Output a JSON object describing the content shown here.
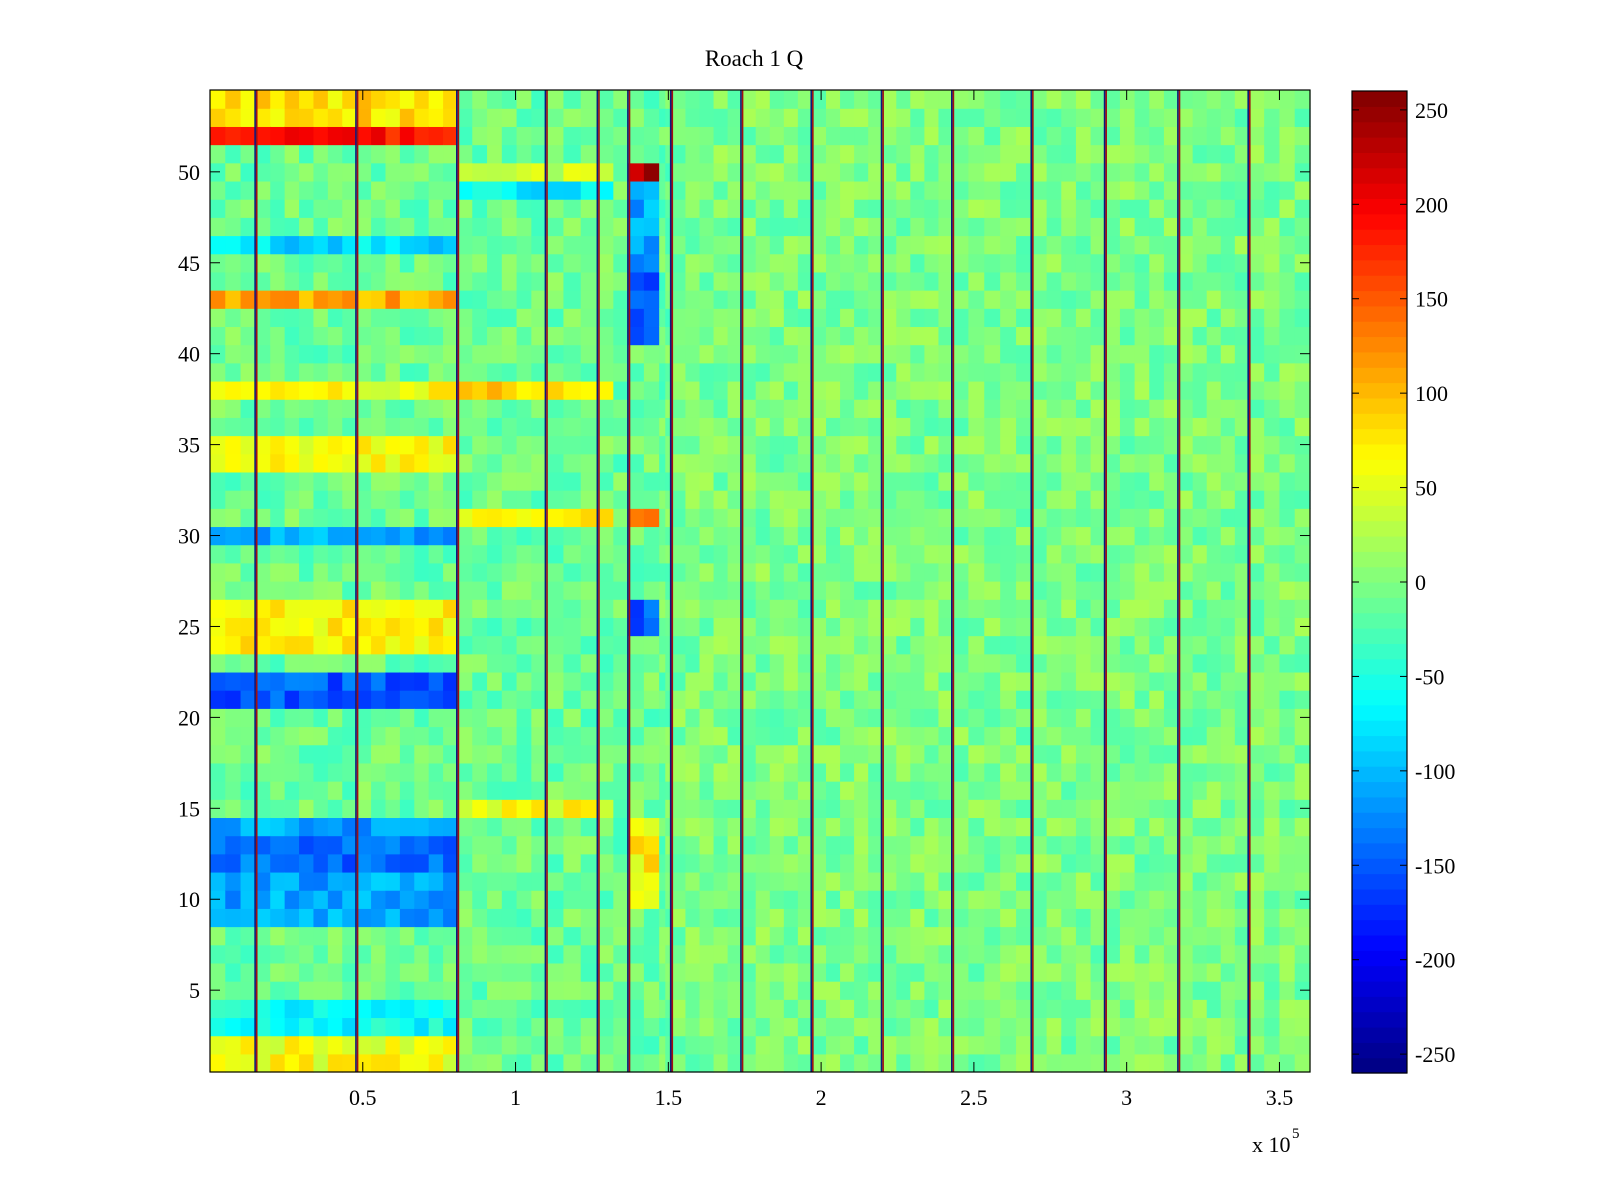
{
  "chart_data": {
    "type": "heatmap",
    "title": "Roach 1 Q",
    "xlabel": "",
    "ylabel": "",
    "x_multiplier_label": "x 10",
    "x_multiplier_exponent": "5",
    "xlim": [
      0,
      3.6
    ],
    "ylim": [
      0.5,
      54.5
    ],
    "x_ticks": [
      0.5,
      1,
      1.5,
      2,
      2.5,
      3,
      3.5
    ],
    "x_tick_labels": [
      "0.5",
      "1",
      "1.5",
      "2",
      "2.5",
      "3",
      "3.5"
    ],
    "y_ticks": [
      5,
      10,
      15,
      20,
      25,
      30,
      35,
      40,
      45,
      50
    ],
    "y_tick_labels": [
      "5",
      "10",
      "15",
      "20",
      "25",
      "30",
      "35",
      "40",
      "45",
      "50"
    ],
    "rows": 54,
    "colormap": "jet",
    "clim": [
      -260,
      260
    ],
    "colorbar_ticks": [
      250,
      200,
      150,
      100,
      50,
      0,
      -50,
      -100,
      -150,
      -200,
      -250
    ],
    "colorbar_tick_labels": [
      "250",
      "200",
      "150",
      "100",
      "50",
      "0",
      "-50",
      "-100",
      "-150",
      "-200",
      "-250"
    ],
    "segment_boundaries": [
      0,
      0.15,
      0.48,
      0.81,
      1.1,
      1.27,
      1.37,
      1.47,
      1.51,
      1.74,
      1.97,
      2.2,
      2.43,
      2.69,
      2.93,
      3.17,
      3.4,
      3.6
    ],
    "boundary_lines": [
      0.15,
      0.48,
      0.81,
      1.1,
      1.27,
      1.37,
      1.51,
      1.74,
      1.97,
      2.2,
      2.43,
      2.69,
      2.93,
      3.17,
      3.4
    ],
    "region_means": [
      {
        "x_range": [
          0,
          0.81
        ],
        "rows": [
          1,
          2
        ],
        "value": 60
      },
      {
        "x_range": [
          0,
          0.81
        ],
        "rows": [
          3,
          4
        ],
        "value": -60
      },
      {
        "x_range": [
          0,
          0.81
        ],
        "rows": [
          9,
          14
        ],
        "value": -110
      },
      {
        "x_range": [
          0,
          0.81
        ],
        "rows": [
          12,
          13
        ],
        "value": -140
      },
      {
        "x_range": [
          0,
          0.81
        ],
        "rows": [
          21,
          22
        ],
        "value": -150
      },
      {
        "x_range": [
          0,
          0.81
        ],
        "rows": [
          24,
          26
        ],
        "value": 70
      },
      {
        "x_range": [
          0,
          0.81
        ],
        "rows": [
          30,
          30
        ],
        "value": -110
      },
      {
        "x_range": [
          0,
          0.81
        ],
        "rows": [
          34,
          35
        ],
        "value": 60
      },
      {
        "x_range": [
          0,
          0.81
        ],
        "rows": [
          38,
          38
        ],
        "value": 60
      },
      {
        "x_range": [
          0,
          0.81
        ],
        "rows": [
          43,
          43
        ],
        "value": 110
      },
      {
        "x_range": [
          0,
          0.81
        ],
        "rows": [
          46,
          46
        ],
        "value": -80
      },
      {
        "x_range": [
          0,
          0.81
        ],
        "rows": [
          52,
          52
        ],
        "value": 190
      },
      {
        "x_range": [
          0,
          0.81
        ],
        "rows": [
          53,
          54
        ],
        "value": 80
      },
      {
        "x_range": [
          0.81,
          1.33
        ],
        "rows": [
          38,
          38
        ],
        "value": 90
      },
      {
        "x_range": [
          0.81,
          1.33
        ],
        "rows": [
          31,
          31
        ],
        "value": 70
      },
      {
        "x_range": [
          0.81,
          1.33
        ],
        "rows": [
          15,
          15
        ],
        "value": 60
      },
      {
        "x_range": [
          0.81,
          1.33
        ],
        "rows": [
          50,
          50
        ],
        "value": 40
      },
      {
        "x_range": [
          0.81,
          1.33
        ],
        "rows": [
          49,
          49
        ],
        "value": -70
      },
      {
        "x_range": [
          1.37,
          1.47
        ],
        "rows": [
          50,
          50
        ],
        "value": 230
      },
      {
        "x_range": [
          1.37,
          1.47
        ],
        "rows": [
          41,
          44
        ],
        "value": -150
      },
      {
        "x_range": [
          1.37,
          1.47
        ],
        "rows": [
          45,
          49
        ],
        "value": -110
      },
      {
        "x_range": [
          1.37,
          1.47
        ],
        "rows": [
          25,
          26
        ],
        "value": -150
      },
      {
        "x_range": [
          1.37,
          1.47
        ],
        "rows": [
          31,
          31
        ],
        "value": 120
      },
      {
        "x_range": [
          1.37,
          1.47
        ],
        "rows": [
          10,
          14
        ],
        "value": 70
      }
    ],
    "background_value": -10
  }
}
